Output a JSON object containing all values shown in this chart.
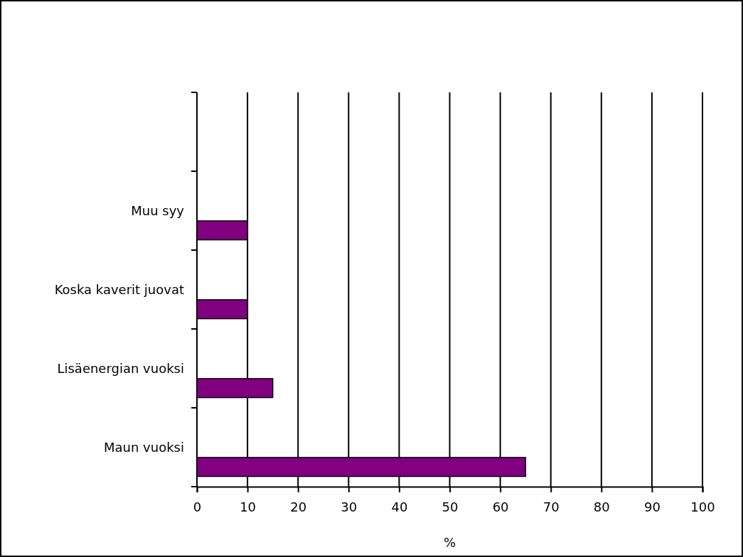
{
  "chart_data": {
    "type": "bar",
    "orientation": "horizontal",
    "xlabel": "%",
    "categories": [
      null,
      "Muu syy",
      "Koska kaverit juovat",
      "Lisäenergian vuoksi",
      "Maun vuoksi"
    ],
    "values": [
      null,
      10,
      10,
      15,
      65
    ],
    "color": "#800080",
    "xlim": [
      0,
      100
    ],
    "xticks": [
      0,
      10,
      20,
      30,
      40,
      50,
      60,
      70,
      80,
      90,
      100
    ],
    "grid": "x"
  }
}
